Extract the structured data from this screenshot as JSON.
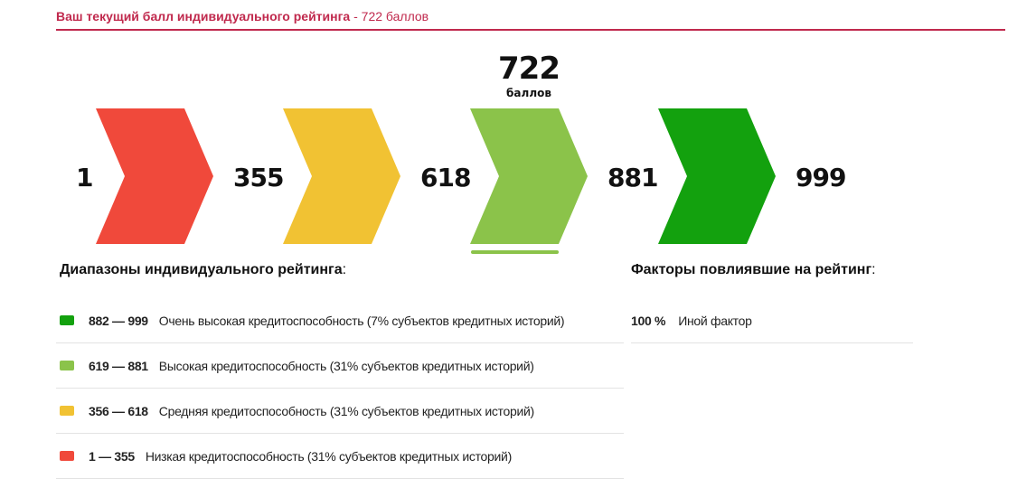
{
  "header": {
    "title_bold": "Ваш текущий балл индивидуального рейтинга",
    "separator": " - ",
    "title_score": "722 баллов"
  },
  "gauge": {
    "current_score": "722",
    "current_unit": "баллов",
    "boundaries": [
      "1",
      "355",
      "618",
      "881",
      "999"
    ],
    "segment_colors": [
      "#f0493b",
      "#f1c233",
      "#8bc34a",
      "#13a10e"
    ]
  },
  "ranges": {
    "title": "Диапазоны индивидуального рейтинга",
    "colon": ":",
    "items": [
      {
        "range": "882 — 999",
        "desc": "Очень высокая кредитоспособность (7% субъектов кредитных историй)",
        "color": "#13a10e"
      },
      {
        "range": "619 — 881",
        "desc": "Высокая кредитоспособность (31% субъектов кредитных историй)",
        "color": "#8bc34a"
      },
      {
        "range": "356 — 618",
        "desc": "Средняя кредитоспособность (31% субъектов кредитных историй)",
        "color": "#f1c233"
      },
      {
        "range": "1 — 355",
        "desc": "Низкая кредитоспособность (31% субъектов кредитных историй)",
        "color": "#f0493b"
      }
    ]
  },
  "factors": {
    "title": "Факторы повлиявшие на рейтинг",
    "colon": ":",
    "items": [
      {
        "percent": "100 %",
        "label": "Иной фактор"
      }
    ]
  }
}
